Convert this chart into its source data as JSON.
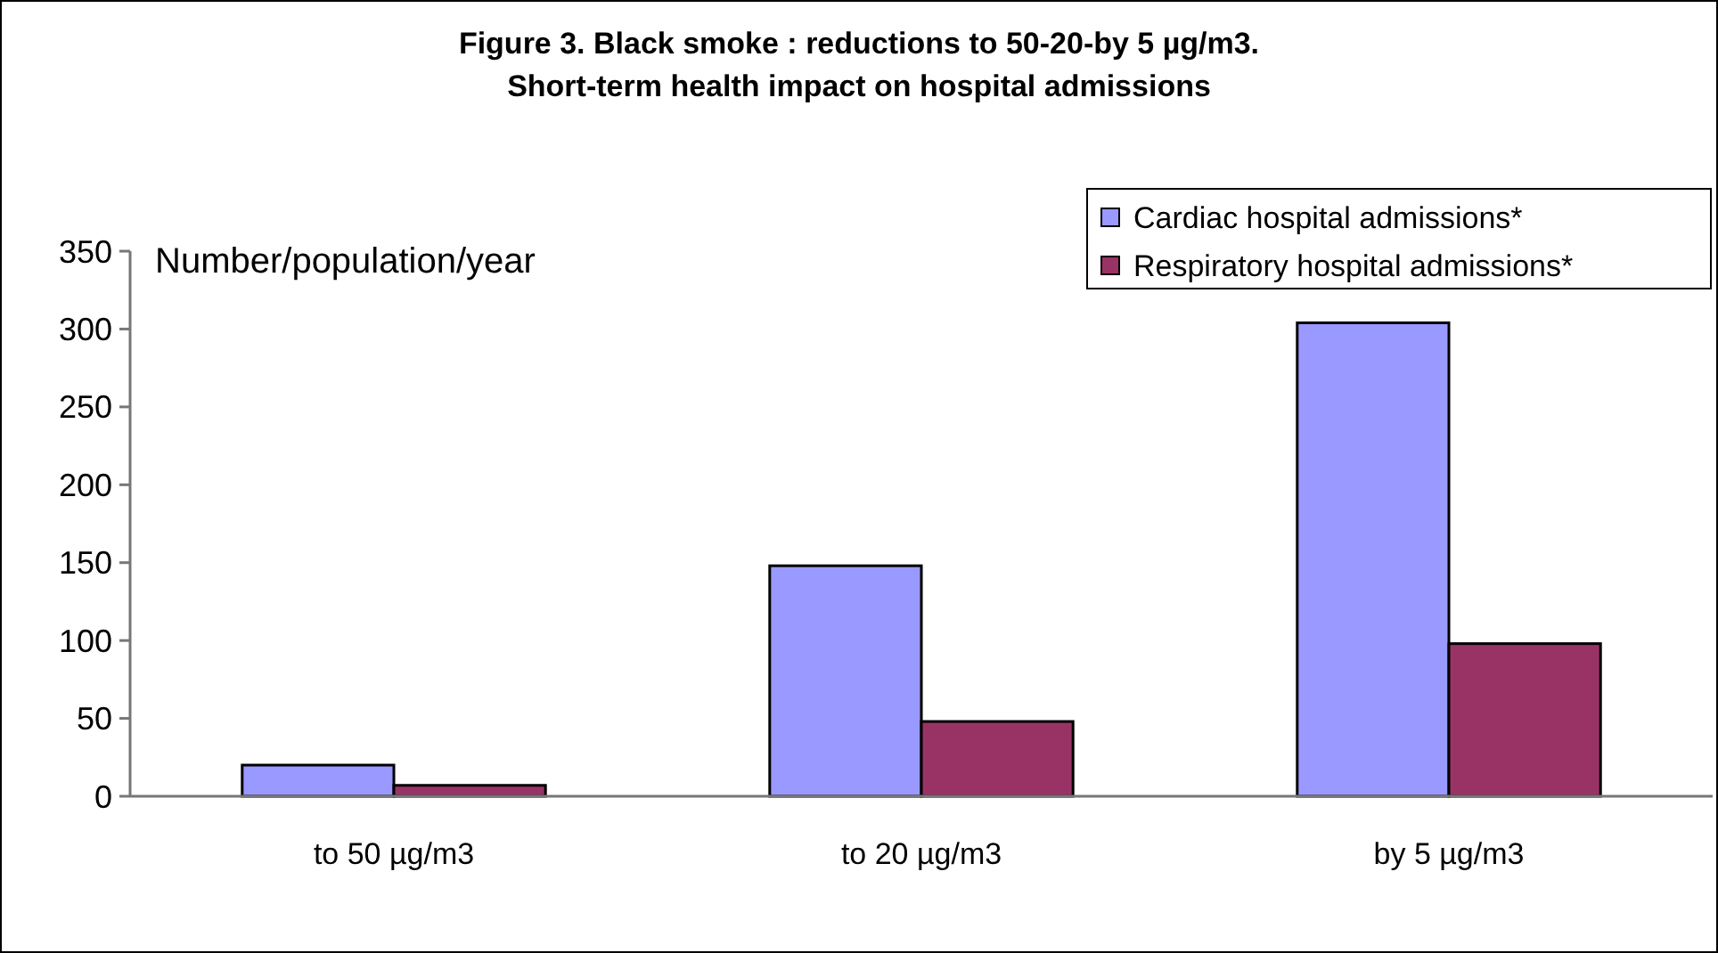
{
  "chart_data": {
    "type": "bar",
    "title": "Figure 3. Black smoke : reductions to 50-20-by 5 µg/m3.",
    "subtitle": "Short-term health impact on hospital admissions",
    "ylabel": "Number/population/year",
    "categories": [
      "to 50 µg/m3",
      "to 20 µg/m3",
      "by 5 µg/m3"
    ],
    "series": [
      {
        "name": "Cardiac hospital admissions*",
        "color": "#9999ff",
        "values": [
          20,
          148,
          304
        ]
      },
      {
        "name": "Respiratory hospital admissions*",
        "color": "#993366",
        "values": [
          7,
          48,
          98
        ]
      }
    ],
    "ylim": [
      0,
      350
    ],
    "yticks": [
      0,
      50,
      100,
      150,
      200,
      250,
      300,
      350
    ],
    "grid": false,
    "legend": "top right"
  }
}
